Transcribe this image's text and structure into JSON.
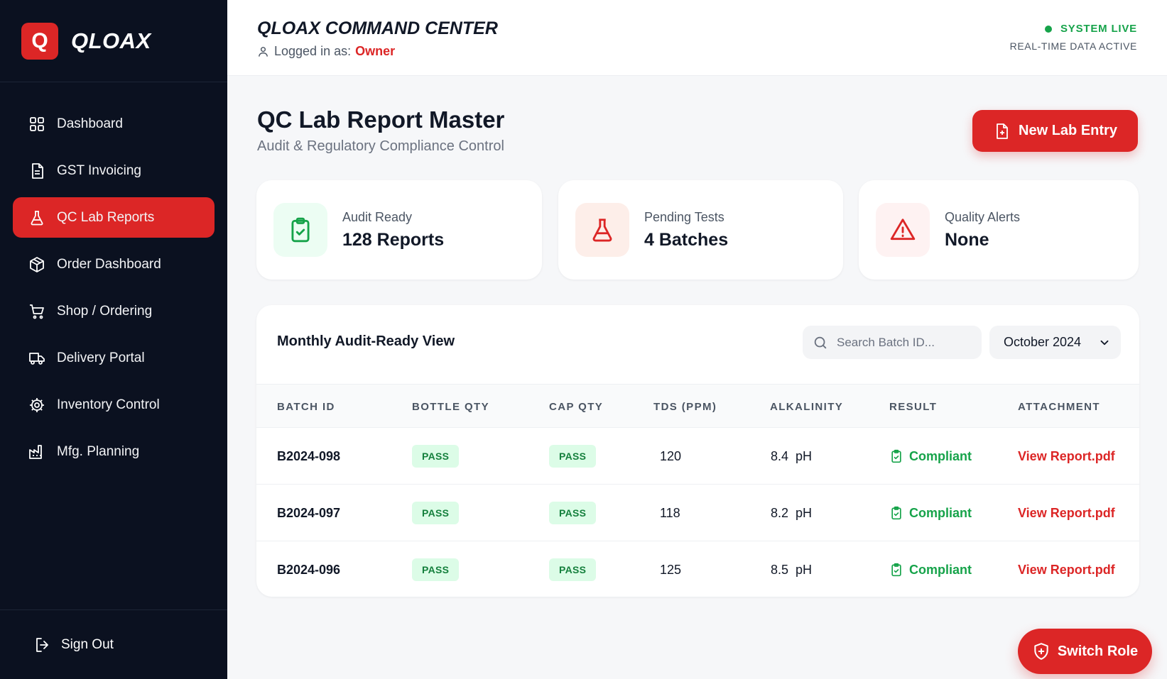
{
  "brand": {
    "logo_letter": "Q",
    "name": "QLOAX"
  },
  "sidebar": {
    "items": [
      {
        "label": "Dashboard",
        "icon": "grid-icon"
      },
      {
        "label": "GST Invoicing",
        "icon": "document-icon"
      },
      {
        "label": "QC Lab Reports",
        "icon": "flask-icon",
        "active": true
      },
      {
        "label": "Order Dashboard",
        "icon": "box-icon"
      },
      {
        "label": "Shop / Ordering",
        "icon": "cart-icon"
      },
      {
        "label": "Delivery Portal",
        "icon": "truck-icon"
      },
      {
        "label": "Inventory Control",
        "icon": "gear-icon"
      },
      {
        "label": "Mfg. Planning",
        "icon": "factory-icon"
      }
    ],
    "sign_out": "Sign Out"
  },
  "header": {
    "title": "QLOAX COMMAND CENTER",
    "logged_in_label": "Logged in as:",
    "role": "Owner",
    "status_live": "SYSTEM LIVE",
    "status_sub": "REAL-TIME DATA ACTIVE"
  },
  "page": {
    "title": "QC Lab Report Master",
    "subtitle": "Audit & Regulatory Compliance Control",
    "new_entry_label": "New Lab Entry"
  },
  "stats": [
    {
      "label": "Audit Ready",
      "value": "128 Reports",
      "icon": "clipboard-check-icon",
      "color": "#16a34a",
      "bg": "#ecfdf3"
    },
    {
      "label": "Pending Tests",
      "value": "4 Batches",
      "icon": "flask-icon",
      "color": "#dc2626",
      "bg": "#fdeee9"
    },
    {
      "label": "Quality Alerts",
      "value": "None",
      "icon": "warning-icon",
      "color": "#dc2626",
      "bg": "#fef2f2"
    }
  ],
  "panel": {
    "title": "Monthly Audit-Ready View",
    "search_placeholder": "Search Batch ID...",
    "month": "October 2024"
  },
  "table": {
    "columns": [
      "BATCH ID",
      "BOTTLE QTY",
      "CAP QTY",
      "TDS (PPM)",
      "ALKALINITY",
      "RESULT",
      "ATTACHMENT"
    ],
    "rows": [
      {
        "batch": "B2024-098",
        "bottle": "PASS",
        "cap": "PASS",
        "tds": "120",
        "alkalinity": "8.4  pH",
        "result": "Compliant",
        "attachment": "View Report.pdf"
      },
      {
        "batch": "B2024-097",
        "bottle": "PASS",
        "cap": "PASS",
        "tds": "118",
        "alkalinity": "8.2  pH",
        "result": "Compliant",
        "attachment": "View Report.pdf"
      },
      {
        "batch": "B2024-096",
        "bottle": "PASS",
        "cap": "PASS",
        "tds": "125",
        "alkalinity": "8.5  pH",
        "result": "Compliant",
        "attachment": "View Report.pdf"
      }
    ]
  },
  "switch_role_label": "Switch Role",
  "colors": {
    "accent": "#dc2626",
    "sidebar_bg": "#0b1120",
    "success": "#16a34a"
  }
}
